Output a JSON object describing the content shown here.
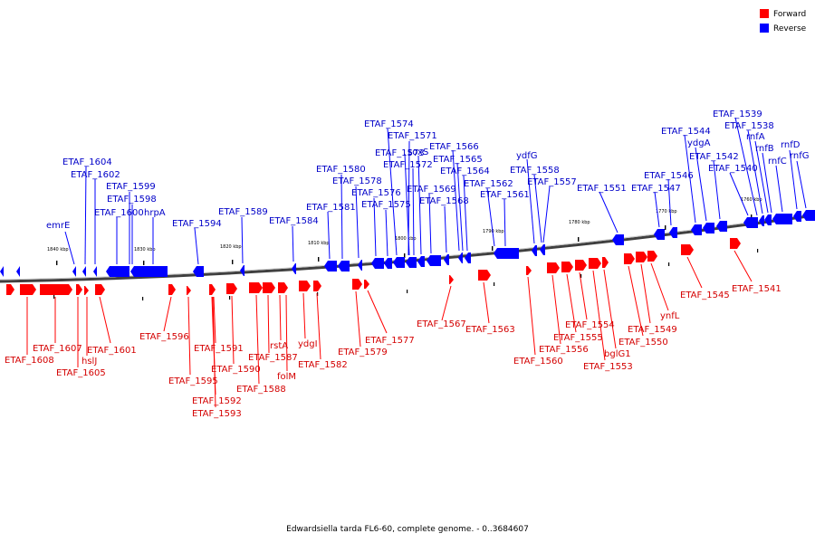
{
  "caption": "Edwardsiella tarda FL6-60, complete genome. - 0..3684607",
  "legend": [
    {
      "label": "Forward",
      "color": "#ff0000"
    },
    {
      "label": "Reverse",
      "color": "#0000ff"
    }
  ],
  "colors": {
    "forward": "#ff0000",
    "reverse": "#0000ff",
    "forward_label": "#d40000",
    "reverse_label": "#0000c8",
    "backbone": "#707070"
  },
  "ticks": [
    "1840 kbp",
    "1830 kbp",
    "1820 kbp",
    "1810 kbp",
    "1800 kbp",
    "1790 kbp",
    "1780 kbp",
    "1770 kbp",
    "1760 kbp"
  ],
  "reverse_labels": [
    "emrE",
    "ETAF_1604",
    "ETAF_1602",
    "ETAF_1600",
    "ETAF_1599",
    "ETAF_1598",
    "hrpA",
    "ETAF_1594",
    "ETAF_1589",
    "ETAF_1584",
    "ETAF_1581",
    "ETAF_1580",
    "ETAF_1578",
    "ETAF_1576",
    "ETAF_1575",
    "ETAF_1574",
    "ETAF_1571",
    "ETAF_1573",
    "ETAF_1572",
    "soxS",
    "ETAF_1569",
    "ETAF_1568",
    "ETAF_1566",
    "ETAF_1565",
    "ETAF_1564",
    "ETAF_1562",
    "ETAF_1561",
    "ydfG",
    "ETAF_1558",
    "ETAF_1557",
    "ETAF_1551",
    "ETAF_1547",
    "ETAF_1546",
    "ETAF_1544",
    "ydgA",
    "ETAF_1542",
    "ETAF_1540",
    "ETAF_1539",
    "ETAF_1538",
    "rnfA",
    "rnfB",
    "rnfC",
    "rnfD",
    "rnfG"
  ],
  "forward_labels": [
    "ETAF_1608",
    "ETAF_1607",
    "ETAF_1605",
    "hslJ",
    "ETAF_1601",
    "ETAF_1596",
    "ETAF_1595",
    "ETAF_1592",
    "ETAF_1593",
    "ETAF_1591",
    "ETAF_1590",
    "ETAF_1588",
    "ETAF_1587",
    "rstA",
    "folM",
    "ydgI",
    "ETAF_1582",
    "ETAF_1579",
    "ETAF_1577",
    "ETAF_1567",
    "ETAF_1563",
    "ETAF_1560",
    "ETAF_1556",
    "ETAF_1555",
    "ETAF_1554",
    "bglG1",
    "ETAF_1553",
    "ETAF_1550",
    "ETAF_1549",
    "ynfL",
    "ETAF_1545",
    "ETAF_1541"
  ]
}
